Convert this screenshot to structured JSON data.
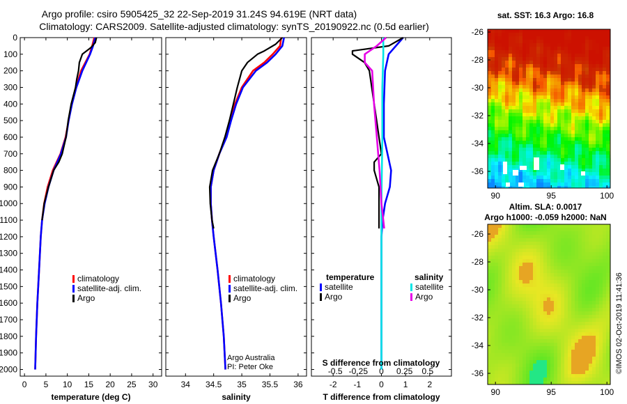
{
  "title": {
    "line1": "Argo profile: csiro 5905425_32 22-Sep-2019 31.24S 94.619E (NRT data)",
    "line2": "Climatology: CARS2009. Satellite-adjusted climatology: synTS_20190922.nc (0.5d earlier)"
  },
  "watermark": "©IMOS 02-Oct-2019 11:41:36",
  "credit": {
    "line1": "Argo Australia",
    "line2": "PI: Peter Oke"
  },
  "colors": {
    "climatology": "#ff0000",
    "satellite": "#0000ff",
    "argo": "#000000",
    "sal_satellite": "#00e5e5",
    "sal_argo": "#e600e6"
  },
  "chart_data": [
    {
      "type": "line",
      "panel": "temperature",
      "xlabel": "temperature (deg C)",
      "xlim": [
        -1,
        32
      ],
      "ylim": [
        2040,
        0
      ],
      "xticks": [
        0,
        5,
        10,
        15,
        20,
        25,
        30
      ],
      "yticks": [
        0,
        100,
        200,
        300,
        400,
        500,
        600,
        700,
        800,
        900,
        1000,
        1100,
        1200,
        1300,
        1400,
        1500,
        1600,
        1700,
        1800,
        1900,
        2000
      ],
      "legend": [
        "climatology",
        "satellite-adj. clim.",
        "Argo"
      ],
      "series": [
        {
          "name": "climatology",
          "color": "#ff0000",
          "depth": [
            0,
            50,
            100,
            200,
            300,
            400,
            500,
            600,
            700,
            800,
            900,
            1000,
            1100,
            1200,
            1400,
            1600,
            1800,
            2000
          ],
          "value": [
            16.3,
            15.8,
            15.2,
            13.2,
            12.0,
            11.0,
            10.3,
            9.6,
            8.4,
            6.6,
            5.4,
            4.6,
            4.1,
            3.8,
            3.4,
            3.0,
            2.7,
            2.5
          ]
        },
        {
          "name": "satellite-adj. clim.",
          "color": "#0000ff",
          "depth": [
            0,
            50,
            100,
            200,
            300,
            400,
            500,
            600,
            700,
            800,
            900,
            1000,
            1100,
            1200,
            1400,
            1600,
            1800,
            2000
          ],
          "value": [
            16.5,
            16.0,
            15.3,
            13.5,
            12.1,
            11.1,
            10.3,
            9.7,
            8.5,
            6.8,
            5.6,
            4.7,
            4.1,
            3.8,
            3.4,
            3.0,
            2.7,
            2.5
          ]
        },
        {
          "name": "Argo",
          "color": "#000000",
          "depth": [
            0,
            30,
            60,
            100,
            150,
            200,
            250,
            300,
            400,
            500,
            600,
            700,
            750,
            800,
            900,
            1000,
            1100
          ],
          "value": [
            16.8,
            16.5,
            15.5,
            13.5,
            12.8,
            12.6,
            12.2,
            11.9,
            10.9,
            10.2,
            9.7,
            8.8,
            8.0,
            6.8,
            5.6,
            4.6,
            4.1
          ]
        }
      ]
    },
    {
      "type": "line",
      "panel": "salinity",
      "xlabel": "salinity",
      "xlim": [
        33.65,
        36.15
      ],
      "ylim": [
        2040,
        0
      ],
      "xticks": [
        34,
        34.5,
        35,
        35.5,
        36
      ],
      "legend": [
        "climatology",
        "satellite-adj. clim.",
        "Argo"
      ],
      "series": [
        {
          "name": "climatology",
          "color": "#ff0000",
          "depth": [
            0,
            50,
            100,
            150,
            200,
            300,
            400,
            500,
            600,
            700,
            800,
            900,
            1000,
            1100,
            1200,
            1400,
            1600,
            1800,
            2000
          ],
          "value": [
            35.7,
            35.68,
            35.55,
            35.4,
            35.2,
            35.0,
            34.88,
            34.8,
            34.72,
            34.6,
            34.5,
            34.45,
            34.45,
            34.47,
            34.5,
            34.57,
            34.63,
            34.68,
            34.71
          ]
        },
        {
          "name": "satellite-adj. clim.",
          "color": "#0000ff",
          "depth": [
            0,
            50,
            100,
            150,
            200,
            300,
            400,
            500,
            600,
            700,
            800,
            900,
            1000,
            1100,
            1200,
            1400,
            1600,
            1800,
            2000
          ],
          "value": [
            35.75,
            35.72,
            35.6,
            35.45,
            35.25,
            35.02,
            34.9,
            34.81,
            34.73,
            34.6,
            34.5,
            34.45,
            34.45,
            34.47,
            34.5,
            34.57,
            34.63,
            34.68,
            34.71
          ]
        },
        {
          "name": "Argo",
          "color": "#000000",
          "depth": [
            0,
            40,
            80,
            100,
            150,
            200,
            300,
            400,
            500,
            600,
            700,
            800,
            900,
            1000,
            1100,
            1150
          ],
          "value": [
            35.72,
            35.6,
            35.4,
            35.28,
            35.1,
            35.0,
            34.92,
            34.85,
            34.78,
            34.7,
            34.6,
            34.48,
            34.43,
            34.44,
            34.47,
            34.5
          ]
        }
      ]
    },
    {
      "type": "line",
      "panel": "difference",
      "xlabel": "T difference from climatology",
      "xlabel_top": "S difference from climatology",
      "xlim": [
        -2.9,
        2.9
      ],
      "ylim": [
        2040,
        0
      ],
      "xticks": [
        -2,
        -1,
        0,
        1,
        2
      ],
      "xticks_top": [
        -0.5,
        -0.25,
        0,
        0.25,
        0.5
      ],
      "legend_left_title": "temperature",
      "legend_right_title": "salinity",
      "legend": [
        "satellite",
        "Argo",
        "satellite",
        "Argo"
      ],
      "series": [
        {
          "name": "T satellite",
          "color": "#0000ff",
          "depth": [
            0,
            50,
            100,
            200,
            400,
            600,
            800,
            900,
            1000,
            1100,
            1200,
            1400,
            1600,
            1800,
            2000
          ],
          "value": [
            0.9,
            0.6,
            0.3,
            0.15,
            0.1,
            0.1,
            0.4,
            0.35,
            0.15,
            0.05,
            0.0,
            0.0,
            0.0,
            0.0,
            0.0
          ]
        },
        {
          "name": "T Argo",
          "color": "#000000",
          "depth": [
            0,
            50,
            80,
            100,
            150,
            200,
            300,
            400,
            500,
            600,
            700,
            750,
            800,
            900,
            1000,
            1100,
            1150
          ],
          "value": [
            0.9,
            0.3,
            -1.2,
            -1.2,
            -0.7,
            -0.5,
            -0.4,
            -0.3,
            -0.2,
            -0.1,
            0.0,
            -0.3,
            -0.3,
            -0.1,
            -0.1,
            -0.1,
            -0.1
          ]
        },
        {
          "name": "S satellite",
          "color": "#00e5e5",
          "depth": [
            0,
            100,
            300,
            600,
            1000,
            1400,
            1800,
            2000
          ],
          "value": [
            0.02,
            0.02,
            0.01,
            0.01,
            0.0,
            0.0,
            0.0,
            0.0
          ]
        },
        {
          "name": "S Argo",
          "color": "#e600e6",
          "depth": [
            0,
            50,
            100,
            150,
            200,
            400,
            600,
            800,
            900,
            1000,
            1100,
            1150
          ],
          "value": [
            0.05,
            -0.05,
            -0.18,
            -0.18,
            -0.1,
            -0.08,
            -0.05,
            -0.02,
            -0.01,
            0.0,
            0.02,
            0.03
          ]
        }
      ]
    },
    {
      "type": "heatmap",
      "panel": "sst",
      "title": "sat. SST: 16.3 Argo: 16.8",
      "xticks": [
        90,
        95,
        100
      ],
      "yticks": [
        -26,
        -28,
        -30,
        -32,
        -34,
        -36
      ],
      "xlim": [
        89.3,
        100.3
      ],
      "ylim": [
        -37.2,
        -25.8
      ]
    },
    {
      "type": "heatmap",
      "panel": "sla",
      "title": "Altim. SLA: 0.0017",
      "subtitle": "Argo h1000: -0.059 h2000: NaN",
      "xticks": [
        90,
        95,
        100
      ],
      "yticks": [
        -26,
        -28,
        -30,
        -32,
        -34,
        -36
      ],
      "xlim": [
        89.3,
        100.3
      ],
      "ylim": [
        -36.8,
        -25.3
      ]
    }
  ]
}
